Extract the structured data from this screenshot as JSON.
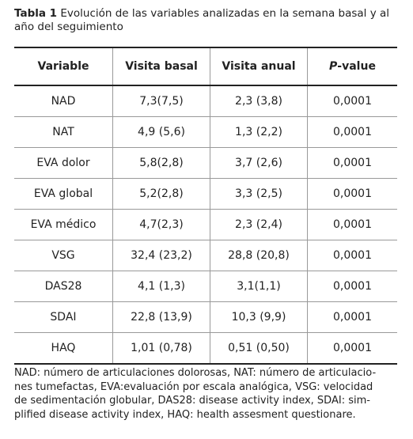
{
  "caption": {
    "label": "Tabla 1",
    "text": "Evolución de las variables analizadas en la semana basal y al año del seguimiento"
  },
  "table": {
    "header": [
      "Variable",
      "Visita basal",
      "Visita anual",
      {
        "italic": "P",
        "text": "-value"
      }
    ],
    "rows": [
      [
        "NAD",
        "7,3(7,5)",
        "2,3 (3,8)",
        "0,0001"
      ],
      [
        "NAT",
        "4,9 (5,6)",
        "1,3 (2,2)",
        "0,0001"
      ],
      [
        "EVA dolor",
        "5,8(2,8)",
        "3,7 (2,6)",
        "0,0001"
      ],
      [
        "EVA global",
        "5,2(2,8)",
        "3,3 (2,5)",
        "0,0001"
      ],
      [
        "EVA médico",
        "4,7(2,3)",
        "2,3 (2,4)",
        "0,0001"
      ],
      [
        "VSG",
        "32,4 (23,2)",
        "28,8 (20,8)",
        "0,0001"
      ],
      [
        "DAS28",
        "4,1 (1,3)",
        "3,1(1,1)",
        "0,0001"
      ],
      [
        "SDAI",
        "22,8 (13,9)",
        "10,3 (9,9)",
        "0,0001"
      ],
      [
        "HAQ",
        "1,01 (0,78)",
        "0,51 (0,50)",
        "0,0001"
      ]
    ]
  },
  "footnote": [
    "NAD: número de articulaciones dolorosas, NAT: número de articulacio-",
    "nes tumefactas, EVA:evaluación por escala analógica, VSG: velocidad",
    "de sedimentación globular, DAS28: disease activity index, SDAI: sim-",
    "plified disease activity index, HAQ: health assesment questionare."
  ]
}
